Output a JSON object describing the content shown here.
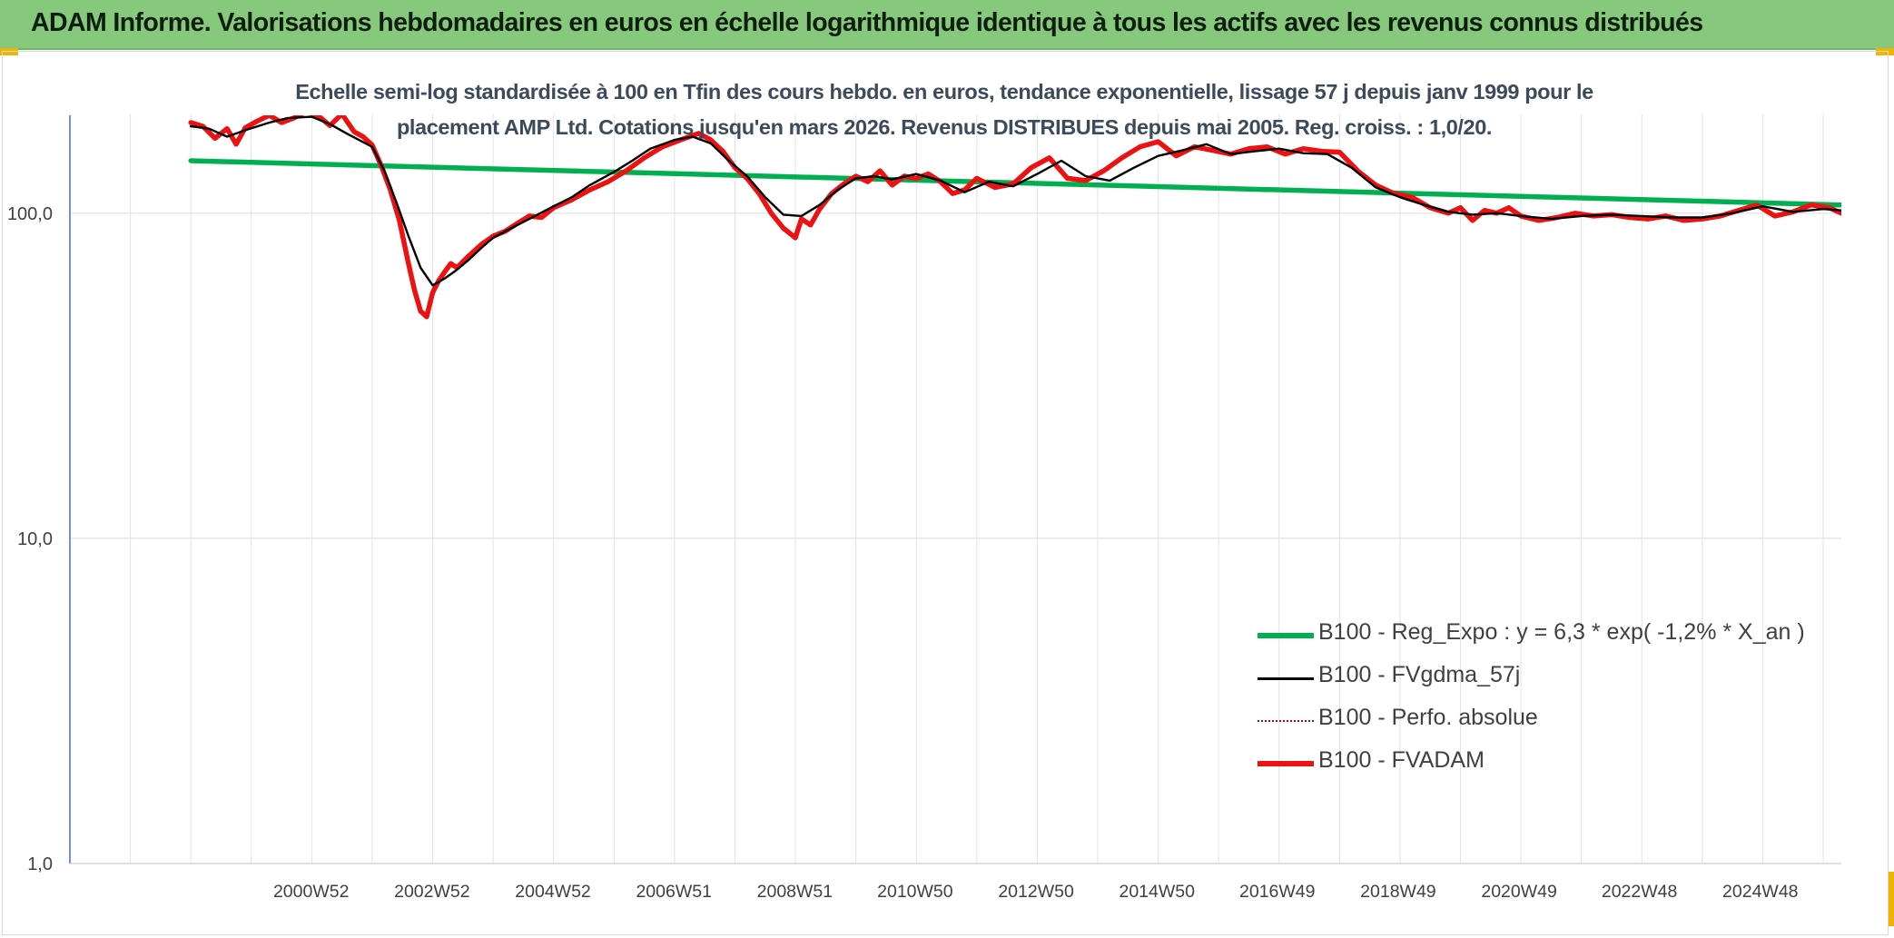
{
  "banner": {
    "title": "ADAM Informe. Valorisations hebdomadaires en euros en échelle logarithmique identique à tous les actifs avec les revenus connus distribués"
  },
  "chart_data": {
    "type": "line",
    "title": "",
    "subtitle_lines": [
      "Echelle semi-log standardisée à 100 en Tfin des cours hebdo. en euros, tendance exponentielle, lissage 57 j depuis janv 1999 pour le",
      "placement AMP Ltd. Cotations jusqu'en mars 2026. Revenus DISTRIBUES depuis mai 2005. Reg. croiss. : 1,0/20."
    ],
    "xlabel": "",
    "ylabel": "",
    "yscale": "log",
    "ylim": [
      1,
      200
    ],
    "xlim": [
      1997.0,
      2026.3
    ],
    "grid": true,
    "legend_position": "bottom-right",
    "x_tick_labels": [
      "2000W52",
      "2002W52",
      "2004W52",
      "2006W51",
      "2008W51",
      "2010W50",
      "2012W50",
      "2014W50",
      "2016W49",
      "2018W49",
      "2020W49",
      "2022W48",
      "2024W48"
    ],
    "x_tick_values": [
      2000.99,
      2002.99,
      2004.99,
      2006.99,
      2008.99,
      2010.98,
      2012.98,
      2014.98,
      2016.97,
      2018.97,
      2020.97,
      2022.96,
      2024.96
    ],
    "y_tick_labels": [
      "1,0",
      "10,0",
      "100,0"
    ],
    "y_tick_values": [
      1,
      10,
      100
    ],
    "series": [
      {
        "name": "B100 - Reg_Expo : y = 6,3 * exp( -1,2% *  X_an )",
        "color": "#00b050",
        "style": "solid-thick",
        "x": [
          1999.0,
          2026.3
        ],
        "values": [
          145,
          106
        ]
      },
      {
        "name": "B100 - FVgdma_57j",
        "color": "#000000",
        "style": "solid-thin",
        "x": [
          1999.0,
          1999.3,
          1999.6,
          1999.9,
          2000.3,
          2000.6,
          2001.0,
          2001.3,
          2001.6,
          2002.0,
          2002.2,
          2002.4,
          2002.6,
          2002.8,
          2003.0,
          2003.2,
          2003.4,
          2003.6,
          2003.8,
          2004.0,
          2004.3,
          2004.6,
          2005.0,
          2005.3,
          2005.6,
          2006.0,
          2006.3,
          2006.6,
          2007.0,
          2007.3,
          2007.6,
          2007.9,
          2008.2,
          2008.5,
          2008.8,
          2009.1,
          2009.4,
          2009.7,
          2010.0,
          2010.3,
          2010.6,
          2011.0,
          2011.4,
          2011.8,
          2012.2,
          2012.6,
          2013.0,
          2013.4,
          2013.8,
          2014.2,
          2014.6,
          2015.0,
          2015.4,
          2015.8,
          2016.2,
          2016.6,
          2017.0,
          2017.4,
          2017.8,
          2018.2,
          2018.6,
          2019.0,
          2019.4,
          2019.8,
          2020.2,
          2020.6,
          2021.0,
          2021.5,
          2022.0,
          2022.5,
          2023.0,
          2023.5,
          2024.0,
          2024.5,
          2025.0,
          2025.5,
          2026.0,
          2026.3
        ],
        "values": [
          185,
          182,
          172,
          180,
          190,
          196,
          198,
          188,
          175,
          160,
          135,
          108,
          85,
          68,
          60,
          63,
          67,
          72,
          78,
          84,
          90,
          96,
          105,
          112,
          122,
          134,
          145,
          158,
          168,
          172,
          164,
          145,
          130,
          112,
          99,
          98,
          106,
          118,
          128,
          130,
          127,
          132,
          126,
          116,
          125,
          121,
          132,
          145,
          130,
          126,
          138,
          150,
          156,
          163,
          152,
          155,
          158,
          153,
          152,
          138,
          120,
          112,
          106,
          101,
          99,
          100,
          98,
          96,
          98,
          99,
          98,
          97,
          97,
          100,
          105,
          101,
          103,
          102
        ]
      },
      {
        "name": "B100 - Perfo. absolue",
        "color": "#c00000",
        "style": "dotted",
        "x": [],
        "values": []
      },
      {
        "name": "B100 - FVADAM",
        "color": "#ee1111",
        "style": "solid-thick",
        "x": [
          1999.0,
          1999.2,
          1999.4,
          1999.6,
          1999.75,
          1999.9,
          2000.1,
          2000.3,
          2000.5,
          2000.7,
          2000.9,
          2001.1,
          2001.3,
          2001.5,
          2001.7,
          2001.85,
          2002.0,
          2002.15,
          2002.3,
          2002.45,
          2002.6,
          2002.7,
          2002.8,
          2002.9,
          2003.0,
          2003.1,
          2003.2,
          2003.3,
          2003.4,
          2003.6,
          2003.8,
          2004.0,
          2004.2,
          2004.4,
          2004.6,
          2004.8,
          2005.0,
          2005.3,
          2005.6,
          2005.9,
          2006.2,
          2006.5,
          2006.8,
          2007.1,
          2007.4,
          2007.6,
          2007.8,
          2008.0,
          2008.2,
          2008.4,
          2008.6,
          2008.8,
          2009.0,
          2009.1,
          2009.25,
          2009.4,
          2009.6,
          2009.8,
          2010.0,
          2010.2,
          2010.4,
          2010.6,
          2010.8,
          2011.0,
          2011.2,
          2011.4,
          2011.6,
          2011.8,
          2012.0,
          2012.3,
          2012.6,
          2012.9,
          2013.2,
          2013.5,
          2013.8,
          2014.1,
          2014.4,
          2014.7,
          2015.0,
          2015.3,
          2015.6,
          2015.9,
          2016.2,
          2016.5,
          2016.8,
          2017.1,
          2017.4,
          2017.7,
          2018.0,
          2018.3,
          2018.6,
          2018.9,
          2019.2,
          2019.5,
          2019.8,
          2020.0,
          2020.2,
          2020.4,
          2020.6,
          2020.8,
          2021.0,
          2021.3,
          2021.6,
          2021.9,
          2022.2,
          2022.5,
          2022.8,
          2023.1,
          2023.4,
          2023.7,
          2024.0,
          2024.3,
          2024.6,
          2024.9,
          2025.2,
          2025.5,
          2025.8,
          2026.1,
          2026.3
        ],
        "values": [
          190,
          185,
          170,
          182,
          163,
          183,
          192,
          200,
          190,
          196,
          205,
          200,
          186,
          202,
          178,
          172,
          162,
          140,
          118,
          95,
          70,
          58,
          50,
          48,
          57,
          62,
          66,
          70,
          68,
          74,
          80,
          85,
          88,
          93,
          98,
          97,
          104,
          110,
          118,
          125,
          135,
          148,
          160,
          168,
          176,
          168,
          155,
          138,
          128,
          115,
          100,
          90,
          84,
          96,
          92,
          103,
          115,
          123,
          130,
          125,
          135,
          122,
          130,
          128,
          132,
          125,
          115,
          118,
          128,
          120,
          123,
          138,
          148,
          128,
          126,
          135,
          148,
          160,
          166,
          150,
          160,
          156,
          152,
          158,
          160,
          152,
          158,
          155,
          154,
          135,
          122,
          115,
          112,
          104,
          100,
          104,
          95,
          102,
          100,
          104,
          98,
          95,
          97,
          100,
          98,
          99,
          97,
          96,
          98,
          95,
          96,
          98,
          102,
          106,
          98,
          101,
          106,
          104,
          100
        ]
      }
    ]
  }
}
